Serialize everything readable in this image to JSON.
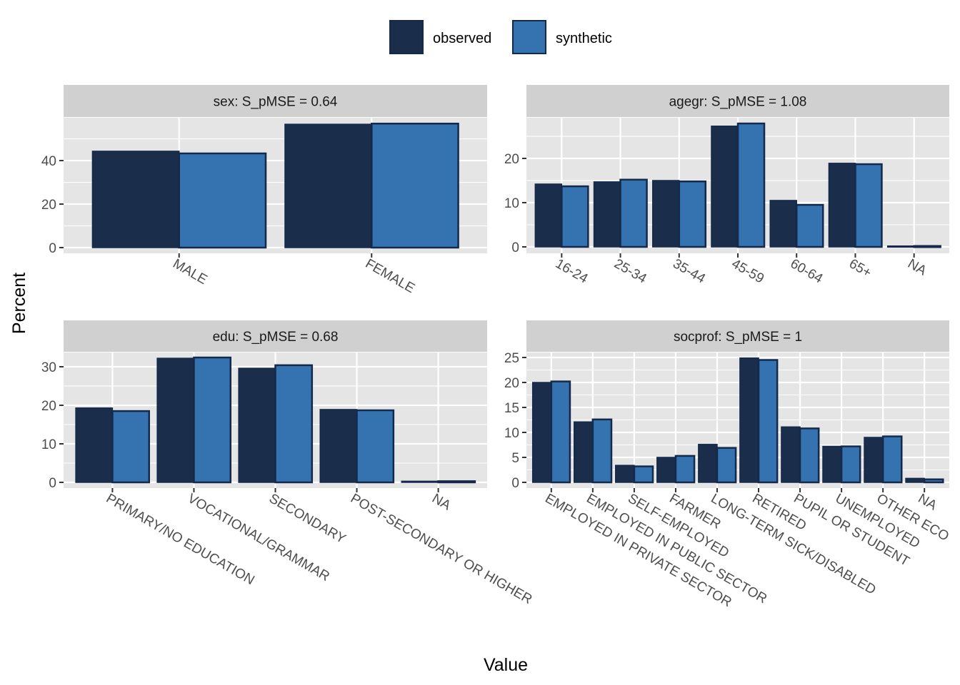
{
  "chart_data": [
    {
      "type": "bar",
      "panel": "sex",
      "title": "sex: S_pMSE = 0.64",
      "categories": [
        "MALE",
        "FEMALE"
      ],
      "series": [
        {
          "name": "observed",
          "values": [
            44.3,
            56.7
          ]
        },
        {
          "name": "synthetic",
          "values": [
            43.3,
            57.0
          ]
        }
      ],
      "ylim": [
        0,
        59.7
      ],
      "yticks": [
        0,
        20,
        40
      ],
      "ytick_labels": [
        "0",
        "20",
        "40"
      ],
      "position": "top-left"
    },
    {
      "type": "bar",
      "panel": "agegr",
      "title": "agegr: S_pMSE = 1.08",
      "categories": [
        "16-24",
        "25-34",
        "35-44",
        "45-59",
        "60-64",
        "65+",
        "NA"
      ],
      "series": [
        {
          "name": "observed",
          "values": [
            14.2,
            14.7,
            15.0,
            27.3,
            10.5,
            18.9,
            0.2
          ]
        },
        {
          "name": "synthetic",
          "values": [
            13.7,
            15.2,
            14.8,
            27.9,
            9.5,
            18.7,
            0.2
          ]
        }
      ],
      "ylim": [
        0,
        29.2
      ],
      "yticks": [
        0,
        10,
        20
      ],
      "ytick_labels": [
        "0",
        "10",
        "20"
      ],
      "position": "top-right"
    },
    {
      "type": "bar",
      "panel": "edu",
      "title": "edu: S_pMSE = 0.68",
      "categories": [
        "PRIMARY/NO EDUCATION",
        "VOCATIONAL/GRAMMAR",
        "SECONDARY",
        "POST-SECONDARY OR HIGHER",
        "NA"
      ],
      "series": [
        {
          "name": "observed",
          "values": [
            19.3,
            32.2,
            29.6,
            18.9,
            0.3
          ]
        },
        {
          "name": "synthetic",
          "values": [
            18.5,
            32.4,
            30.4,
            18.7,
            0.3
          ]
        }
      ],
      "ylim": [
        0,
        33.7
      ],
      "yticks": [
        0,
        10,
        20,
        30
      ],
      "ytick_labels": [
        "0",
        "10",
        "20",
        "30"
      ],
      "position": "bottom-left"
    },
    {
      "type": "bar",
      "panel": "socprof",
      "title": "socprof: S_pMSE = 1",
      "categories": [
        "EMPLOYED IN PRIVATE SECTOR",
        "EMPLOYED IN PUBLIC SECTOR",
        "SELF-EMPLOYED",
        "FARMER",
        "LONG-TERM SICK/DISABLED",
        "RETIRED",
        "PUPIL OR STUDENT",
        "UNEMPLOYED",
        "OTHER ECO",
        "NA"
      ],
      "series": [
        {
          "name": "observed",
          "values": [
            20.0,
            12.1,
            3.4,
            5.0,
            7.6,
            24.9,
            11.1,
            7.2,
            9.0,
            0.8
          ]
        },
        {
          "name": "synthetic",
          "values": [
            20.2,
            12.6,
            3.2,
            5.3,
            6.9,
            24.5,
            10.8,
            7.2,
            9.2,
            0.6
          ]
        }
      ],
      "ylim": [
        0,
        26
      ],
      "yticks": [
        0,
        5,
        10,
        15,
        20,
        25
      ],
      "ytick_labels": [
        "0",
        "5",
        "10",
        "15",
        "20",
        "25"
      ],
      "position": "bottom-right"
    }
  ],
  "legend": {
    "placement": "top",
    "items": [
      {
        "label": "observed",
        "color": "#1a2d4b"
      },
      {
        "label": "synthetic",
        "color": "#3572b0"
      }
    ]
  },
  "axes": {
    "xlabel": "Value",
    "ylabel": "Percent"
  },
  "colors": {
    "panel_bg": "#e5e5e5",
    "strip_bg": "#d0d0d0",
    "grid": "#ffffff",
    "bar_outline": "#15294a"
  }
}
